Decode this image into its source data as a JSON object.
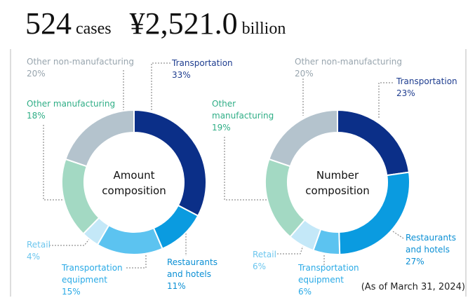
{
  "header": {
    "count": "524",
    "count_unit": "cases",
    "amount": "¥2,521.0",
    "amount_unit": "billion"
  },
  "note": "(As of March 31, 2024)",
  "chart_data": [
    {
      "type": "pie",
      "donut": true,
      "center_label": [
        "Amount",
        "composition"
      ],
      "categories": [
        "Transportation",
        "Restaurants and hotels",
        "Transportation equipment",
        "Retail",
        "Other manufacturing",
        "Other non-manufacturing"
      ],
      "values": [
        33,
        11,
        15,
        4,
        18,
        20
      ],
      "value_labels": [
        "33%",
        "11%",
        "15%",
        "4%",
        "18%",
        "20%"
      ],
      "colors": [
        "#0b2f88",
        "#0a9be0",
        "#5cc3f0",
        "#c4e8f8",
        "#a3d9c3",
        "#b4c3cd"
      ],
      "label_colors": [
        "#1d3c8f",
        "#0a8fd4",
        "#2aaae6",
        "#6cc6ee",
        "#2fae86",
        "#98a5ae"
      ]
    },
    {
      "type": "pie",
      "donut": true,
      "center_label": [
        "Number",
        "composition"
      ],
      "categories": [
        "Transportation",
        "Restaurants and hotels",
        "Transportation equipment",
        "Retail",
        "Other manufacturing",
        "Other non-manufacturing"
      ],
      "values": [
        23,
        27,
        6,
        6,
        19,
        20
      ],
      "value_labels": [
        "23%",
        "27%",
        "6%",
        "6%",
        "19%",
        "20%"
      ],
      "colors": [
        "#0b2f88",
        "#0a9be0",
        "#5cc3f0",
        "#c4e8f8",
        "#a3d9c3",
        "#b4c3cd"
      ],
      "label_colors": [
        "#1d3c8f",
        "#0a8fd4",
        "#2aaae6",
        "#6cc6ee",
        "#2fae86",
        "#98a5ae"
      ]
    }
  ]
}
